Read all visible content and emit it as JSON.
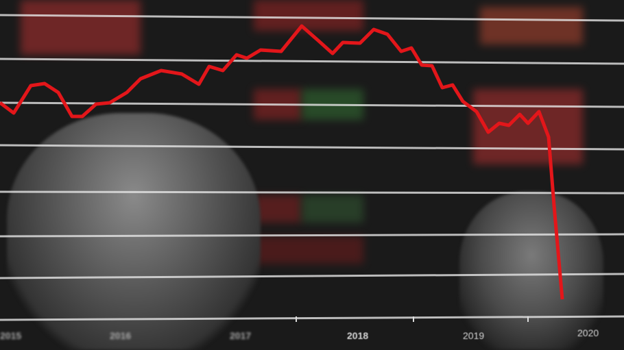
{
  "axis": {
    "years": [
      "2015",
      "2016",
      "2017",
      "2018",
      "2019",
      "2020"
    ]
  },
  "colors": {
    "trend_line": "#e3161a",
    "grid_lines": "#e6e6e6",
    "background": "#1a1a1a"
  }
}
